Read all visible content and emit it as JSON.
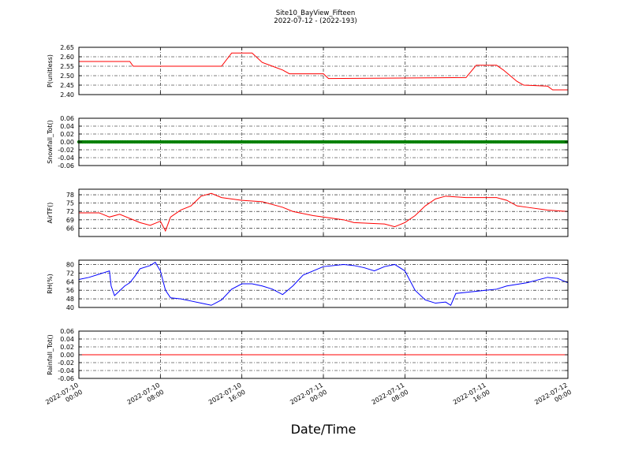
{
  "title": {
    "line1": "Site10_BayView_Fifteen",
    "line2": "2022-07-12 - (2022-193)"
  },
  "xlabel": "Date/Time",
  "x_ticks": [
    {
      "line1": "2022-07-10",
      "line2": "00:00"
    },
    {
      "line1": "2022-07-10",
      "line2": "08:00"
    },
    {
      "line1": "2022-07-10",
      "line2": "16:00"
    },
    {
      "line1": "2022-07-11",
      "line2": "00:00"
    },
    {
      "line1": "2022-07-11",
      "line2": "08:00"
    },
    {
      "line1": "2022-07-11",
      "line2": "16:00"
    },
    {
      "line1": "2022-07-12",
      "line2": "00:00"
    }
  ],
  "chart_data": [
    {
      "type": "line",
      "ylabel": "P(unitless)",
      "ylim": [
        2.4,
        2.65
      ],
      "yticks": [
        "2.40",
        "2.45",
        "2.50",
        "2.55",
        "2.60",
        "2.65"
      ],
      "color": "#ff0000",
      "grid": true,
      "x": [
        "2022-07-10 00:00",
        "2022-07-10 05:00",
        "2022-07-10 05:20",
        "2022-07-10 14:00",
        "2022-07-10 15:00",
        "2022-07-10 17:00",
        "2022-07-10 18:00",
        "2022-07-10 19:00",
        "2022-07-10 20:00",
        "2022-07-10 20:40",
        "2022-07-11 00:00",
        "2022-07-11 00:30",
        "2022-07-11 14:00",
        "2022-07-11 15:00",
        "2022-07-11 17:00",
        "2022-07-11 17:40",
        "2022-07-11 18:20",
        "2022-07-11 19:00",
        "2022-07-11 19:40",
        "2022-07-11 22:00",
        "2022-07-11 22:30",
        "2022-07-12 00:00"
      ],
      "y": [
        2.575,
        2.575,
        2.55,
        2.55,
        2.62,
        2.62,
        2.57,
        2.55,
        2.53,
        2.51,
        2.51,
        2.485,
        2.49,
        2.555,
        2.555,
        2.53,
        2.5,
        2.47,
        2.45,
        2.445,
        2.425,
        2.425
      ]
    },
    {
      "type": "scatter",
      "ylabel": "Snowfall_Tot()",
      "ylim": [
        -0.06,
        0.06
      ],
      "yticks": [
        "-0.06",
        "-0.04",
        "-0.02",
        "0.00",
        "0.02",
        "0.04",
        "0.06"
      ],
      "color": "#008000",
      "grid": true,
      "series_note": "",
      "x_range": [
        "2022-07-10 00:00",
        "2022-07-12 00:00"
      ],
      "constant_value": 0.0
    },
    {
      "type": "line",
      "ylabel": "AirTF()",
      "ylim": [
        63,
        80
      ],
      "yticks": [
        "66",
        "69",
        "72",
        "75",
        "78"
      ],
      "color": "#ff0000",
      "grid": true,
      "x": [
        "2022-07-10 00:00",
        "2022-07-10 02:00",
        "2022-07-10 03:00",
        "2022-07-10 04:00",
        "2022-07-10 06:00",
        "2022-07-10 07:00",
        "2022-07-10 08:00",
        "2022-07-10 08:30",
        "2022-07-10 09:00",
        "2022-07-10 10:00",
        "2022-07-10 11:00",
        "2022-07-10 12:00",
        "2022-07-10 13:00",
        "2022-07-10 14:00",
        "2022-07-10 15:00",
        "2022-07-10 16:00",
        "2022-07-10 18:00",
        "2022-07-10 20:00",
        "2022-07-10 21:00",
        "2022-07-10 23:00",
        "2022-07-11 02:00",
        "2022-07-11 03:00",
        "2022-07-11 06:00",
        "2022-07-11 07:00",
        "2022-07-11 08:00",
        "2022-07-11 09:00",
        "2022-07-11 10:00",
        "2022-07-11 11:00",
        "2022-07-11 12:00",
        "2022-07-11 14:00",
        "2022-07-11 17:00",
        "2022-07-11 18:00",
        "2022-07-11 19:00",
        "2022-07-11 20:00",
        "2022-07-11 22:00",
        "2022-07-12 00:00"
      ],
      "y": [
        71.5,
        71.5,
        70.0,
        71.0,
        68.0,
        67.0,
        68.5,
        65.0,
        70.0,
        72.5,
        74.0,
        77.5,
        78.5,
        77.0,
        76.5,
        76.0,
        75.5,
        73.5,
        72.0,
        70.5,
        69.0,
        68.0,
        67.5,
        66.5,
        68.0,
        70.5,
        74.0,
        76.5,
        77.5,
        77.0,
        77.0,
        76.0,
        74.0,
        73.5,
        72.5,
        72.0
      ]
    },
    {
      "type": "line",
      "ylabel": "RH(%)",
      "ylim": [
        40,
        84
      ],
      "yticks": [
        "40",
        "48",
        "56",
        "64",
        "72",
        "80"
      ],
      "color": "#0000ff",
      "grid": true,
      "x": [
        "2022-07-10 00:00",
        "2022-07-10 01:00",
        "2022-07-10 02:00",
        "2022-07-10 03:00",
        "2022-07-10 03:10",
        "2022-07-10 03:30",
        "2022-07-10 04:30",
        "2022-07-10 05:00",
        "2022-07-10 05:30",
        "2022-07-10 06:00",
        "2022-07-10 07:00",
        "2022-07-10 07:30",
        "2022-07-10 08:00",
        "2022-07-10 08:30",
        "2022-07-10 09:00",
        "2022-07-10 10:00",
        "2022-07-10 11:00",
        "2022-07-10 12:00",
        "2022-07-10 13:00",
        "2022-07-10 14:00",
        "2022-07-10 15:00",
        "2022-07-10 16:00",
        "2022-07-10 17:00",
        "2022-07-10 18:00",
        "2022-07-10 19:00",
        "2022-07-10 20:00",
        "2022-07-10 21:00",
        "2022-07-10 22:00",
        "2022-07-11 00:00",
        "2022-07-11 02:00",
        "2022-07-11 03:00",
        "2022-07-11 04:00",
        "2022-07-11 05:00",
        "2022-07-11 06:00",
        "2022-07-11 07:00",
        "2022-07-11 08:00",
        "2022-07-11 09:00",
        "2022-07-11 10:00",
        "2022-07-11 11:00",
        "2022-07-11 12:00",
        "2022-07-11 12:30",
        "2022-07-11 13:00",
        "2022-07-11 14:00",
        "2022-07-11 16:00",
        "2022-07-11 17:00",
        "2022-07-11 18:00",
        "2022-07-11 20:00",
        "2022-07-11 22:00",
        "2022-07-11 23:00",
        "2022-07-12 00:00"
      ],
      "y": [
        66.0,
        68.0,
        71.0,
        74.0,
        60.0,
        51.0,
        60.0,
        63.0,
        69.0,
        76.0,
        79.0,
        82.0,
        74.0,
        56.0,
        49.0,
        48.0,
        46.0,
        44.0,
        42.0,
        47.0,
        57.0,
        62.0,
        62.0,
        60.0,
        57.0,
        52.0,
        60.0,
        70.0,
        78.0,
        80.0,
        79.0,
        77.0,
        74.0,
        78.0,
        80.0,
        74.0,
        56.0,
        47.0,
        44.0,
        45.0,
        42.0,
        53.0,
        54.0,
        56.0,
        57.0,
        60.0,
        63.0,
        68.0,
        67.0,
        63.0
      ]
    },
    {
      "type": "line",
      "ylabel": "Rainfall_Tot()",
      "ylim": [
        -0.06,
        0.06
      ],
      "yticks": [
        "-0.06",
        "-0.04",
        "-0.02",
        "0.00",
        "0.02",
        "0.04",
        "0.06"
      ],
      "color": "#ff0000",
      "grid": true,
      "x": [
        "2022-07-10 00:00",
        "2022-07-12 00:00"
      ],
      "y": [
        0.0,
        0.0
      ]
    }
  ]
}
